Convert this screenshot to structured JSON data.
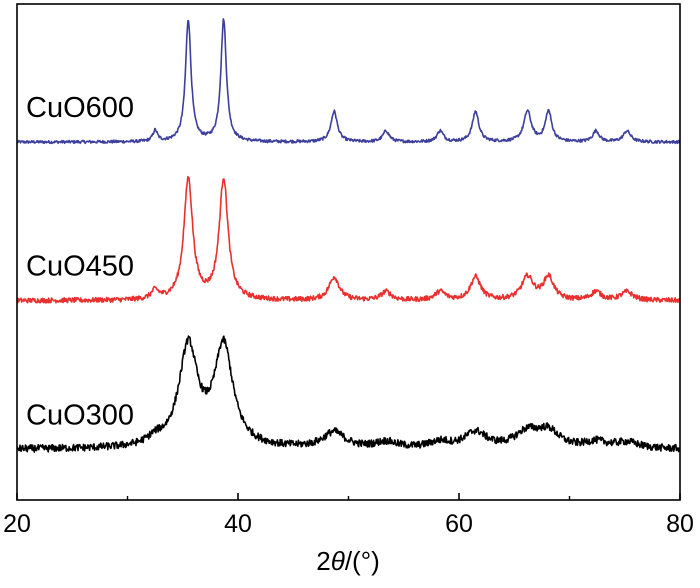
{
  "chart_data": {
    "type": "line",
    "title": "",
    "xlabel_parts": [
      "2",
      "θ",
      "/(°)"
    ],
    "ylabel": "",
    "xlim": [
      20,
      80
    ],
    "xticks": [
      20,
      40,
      60,
      80
    ],
    "y_axis_shown": false,
    "grid": false,
    "legend": "none",
    "stacked_offset": true,
    "peaks": [
      {
        "x": 32.5,
        "w": 0.25,
        "class": "minor"
      },
      {
        "x": 35.5,
        "w": 0.3,
        "class": "major"
      },
      {
        "x": 38.7,
        "w": 0.3,
        "class": "major"
      },
      {
        "x": 48.7,
        "w": 0.35,
        "class": "medium"
      },
      {
        "x": 53.4,
        "w": 0.35,
        "class": "minor"
      },
      {
        "x": 58.3,
        "w": 0.35,
        "class": "minor"
      },
      {
        "x": 61.5,
        "w": 0.35,
        "class": "medium"
      },
      {
        "x": 66.2,
        "w": 0.4,
        "class": "medium"
      },
      {
        "x": 68.1,
        "w": 0.35,
        "class": "medium"
      },
      {
        "x": 72.4,
        "w": 0.35,
        "class": "minor"
      },
      {
        "x": 75.2,
        "w": 0.4,
        "class": "minor"
      }
    ],
    "series": [
      {
        "name": "CuO600",
        "color": "#3c3f9b",
        "baseline": 0.0,
        "major": 1.0,
        "medium": 0.25,
        "minor": 0.09,
        "broaden": 1.0,
        "noise": 0.012
      },
      {
        "name": "CuO450",
        "color": "#e8312e",
        "baseline": -1.3,
        "major": 0.99,
        "medium": 0.19,
        "minor": 0.07,
        "broaden": 1.6,
        "noise": 0.02
      },
      {
        "name": "CuO300",
        "color": "#000000",
        "baseline": -2.52,
        "major": 0.82,
        "medium": 0.13,
        "minor": 0.05,
        "broaden": 3.4,
        "noise": 0.03
      }
    ]
  }
}
